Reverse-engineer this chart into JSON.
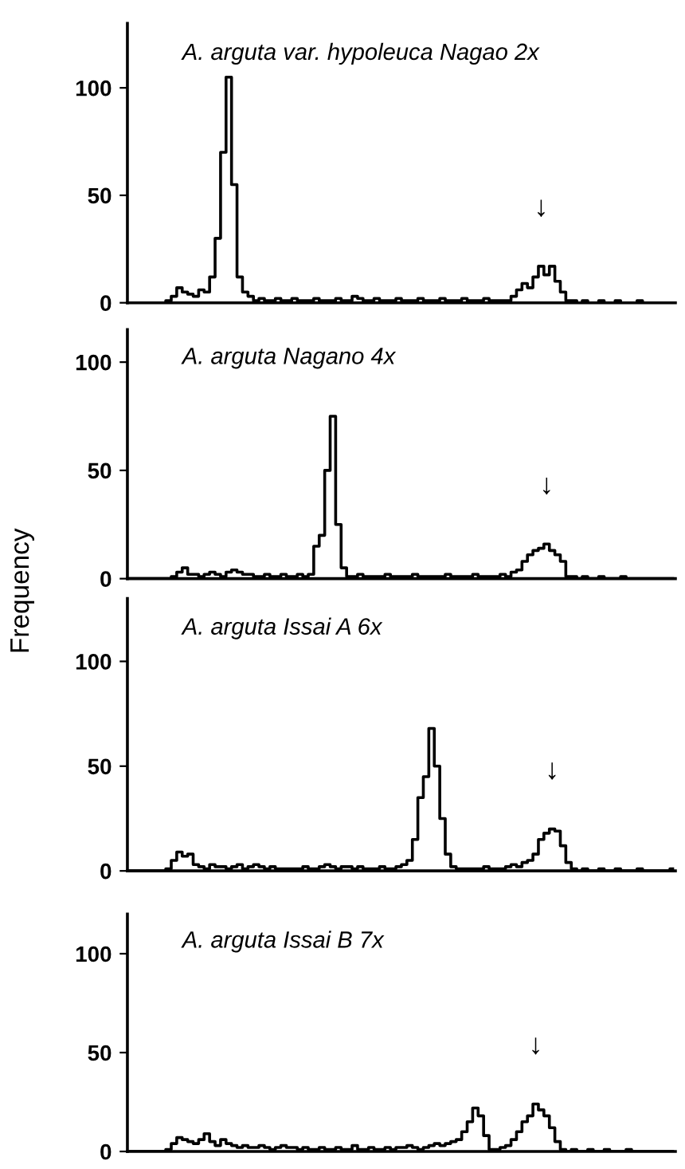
{
  "chart_data": [
    {
      "type": "step",
      "title": "A. arguta var. hypoleuca Nagao 2x",
      "ylim": [
        0,
        130
      ],
      "yticks": [
        0,
        50,
        100
      ],
      "grid": false,
      "annotations": [
        "↓"
      ],
      "categories": [
        null,
        null,
        null,
        null,
        null,
        null,
        null,
        null,
        null,
        null,
        null,
        null,
        null,
        null,
        null,
        null,
        null,
        null,
        null,
        null,
        null,
        null,
        null,
        null,
        null,
        null,
        null,
        null,
        null,
        null,
        null,
        null,
        null,
        null,
        null,
        null,
        null,
        null,
        null,
        null,
        null,
        null,
        null,
        null,
        null,
        null,
        null,
        null,
        null,
        null,
        null,
        null,
        null,
        null,
        null,
        null,
        null,
        null,
        null,
        null,
        null,
        null,
        null,
        null,
        null,
        null,
        null,
        null,
        null,
        null,
        null,
        null,
        null,
        null,
        null,
        null,
        null,
        null,
        null,
        null,
        null,
        null,
        null,
        null,
        null,
        null,
        null,
        null,
        null,
        null,
        null,
        null,
        null,
        null,
        null,
        null,
        null,
        null,
        null,
        null
      ],
      "series": [
        {
          "color": "#000000",
          "values": [
            0,
            0,
            0,
            0,
            0,
            0,
            0,
            1,
            3,
            7,
            5,
            4,
            3,
            6,
            5,
            12,
            30,
            70,
            105,
            55,
            12,
            5,
            3,
            1,
            2,
            1,
            1,
            2,
            1,
            1,
            2,
            1,
            1,
            1,
            2,
            1,
            1,
            1,
            2,
            1,
            1,
            3,
            2,
            1,
            1,
            2,
            1,
            1,
            1,
            2,
            1,
            1,
            1,
            2,
            1,
            1,
            1,
            2,
            1,
            1,
            1,
            2,
            1,
            1,
            1,
            2,
            1,
            1,
            1,
            1,
            3,
            6,
            9,
            7,
            12,
            17,
            13,
            17,
            10,
            5,
            1,
            1,
            0,
            1,
            0,
            0,
            1,
            0,
            0,
            1,
            0,
            0,
            0,
            1,
            0,
            0,
            0,
            0,
            0,
            0
          ]
        }
      ]
    },
    {
      "type": "step",
      "title": "A. arguta Nagano 4x",
      "ylabel": "Frequency",
      "ylim": [
        0,
        115
      ],
      "yticks": [
        0,
        50,
        100
      ],
      "grid": false,
      "annotations": [
        "↓"
      ],
      "categories": [
        null,
        null,
        null,
        null,
        null,
        null,
        null,
        null,
        null,
        null,
        null,
        null,
        null,
        null,
        null,
        null,
        null,
        null,
        null,
        null,
        null,
        null,
        null,
        null,
        null,
        null,
        null,
        null,
        null,
        null,
        null,
        null,
        null,
        null,
        null,
        null,
        null,
        null,
        null,
        null,
        null,
        null,
        null,
        null,
        null,
        null,
        null,
        null,
        null,
        null,
        null,
        null,
        null,
        null,
        null,
        null,
        null,
        null,
        null,
        null,
        null,
        null,
        null,
        null,
        null,
        null,
        null,
        null,
        null,
        null,
        null,
        null,
        null,
        null,
        null,
        null,
        null,
        null,
        null,
        null,
        null,
        null,
        null,
        null,
        null,
        null,
        null,
        null,
        null,
        null,
        null,
        null,
        null,
        null,
        null,
        null,
        null,
        null,
        null,
        null
      ],
      "series": [
        {
          "color": "#000000",
          "values": [
            0,
            0,
            0,
            0,
            0,
            0,
            0,
            0,
            1,
            3,
            5,
            2,
            2,
            1,
            2,
            3,
            2,
            1,
            3,
            4,
            3,
            2,
            2,
            1,
            1,
            2,
            1,
            1,
            2,
            1,
            1,
            2,
            1,
            2,
            15,
            20,
            50,
            75,
            25,
            5,
            1,
            1,
            2,
            1,
            1,
            1,
            1,
            2,
            1,
            1,
            1,
            1,
            2,
            1,
            1,
            1,
            1,
            1,
            2,
            1,
            1,
            1,
            1,
            2,
            1,
            1,
            1,
            1,
            2,
            1,
            3,
            4,
            8,
            11,
            13,
            14,
            16,
            13,
            11,
            8,
            1,
            1,
            0,
            1,
            0,
            0,
            1,
            0,
            0,
            0,
            1,
            0,
            0,
            0,
            0,
            0,
            0,
            0,
            0,
            0
          ]
        }
      ]
    },
    {
      "type": "step",
      "title": "A. arguta Issai A 6x",
      "ylim": [
        0,
        130
      ],
      "yticks": [
        0,
        50,
        100
      ],
      "grid": false,
      "annotations": [
        "↓"
      ],
      "categories": [
        null,
        null,
        null,
        null,
        null,
        null,
        null,
        null,
        null,
        null,
        null,
        null,
        null,
        null,
        null,
        null,
        null,
        null,
        null,
        null,
        null,
        null,
        null,
        null,
        null,
        null,
        null,
        null,
        null,
        null,
        null,
        null,
        null,
        null,
        null,
        null,
        null,
        null,
        null,
        null,
        null,
        null,
        null,
        null,
        null,
        null,
        null,
        null,
        null,
        null,
        null,
        null,
        null,
        null,
        null,
        null,
        null,
        null,
        null,
        null,
        null,
        null,
        null,
        null,
        null,
        null,
        null,
        null,
        null,
        null,
        null,
        null,
        null,
        null,
        null,
        null,
        null,
        null,
        null,
        null,
        null,
        null,
        null,
        null,
        null,
        null,
        null,
        null,
        null,
        null,
        null,
        null,
        null,
        null,
        null,
        null,
        null,
        null,
        null,
        null
      ],
      "series": [
        {
          "color": "#000000",
          "values": [
            0,
            0,
            0,
            0,
            0,
            0,
            0,
            1,
            5,
            9,
            7,
            8,
            3,
            2,
            1,
            3,
            2,
            2,
            1,
            2,
            3,
            1,
            2,
            3,
            2,
            1,
            2,
            1,
            1,
            1,
            1,
            1,
            2,
            1,
            1,
            2,
            3,
            2,
            1,
            2,
            2,
            1,
            2,
            1,
            1,
            1,
            2,
            1,
            1,
            2,
            3,
            5,
            15,
            35,
            45,
            68,
            50,
            25,
            8,
            2,
            1,
            1,
            1,
            1,
            1,
            2,
            1,
            1,
            1,
            2,
            3,
            2,
            4,
            5,
            8,
            15,
            18,
            20,
            19,
            12,
            4,
            1,
            0,
            1,
            0,
            0,
            1,
            0,
            0,
            1,
            0,
            0,
            0,
            1,
            0,
            0,
            0,
            0,
            0,
            1
          ]
        }
      ]
    },
    {
      "type": "step",
      "title": "A. arguta Issai B 7x",
      "ylim": [
        0,
        120
      ],
      "yticks": [
        0,
        50,
        100
      ],
      "grid": false,
      "annotations": [
        "↓"
      ],
      "categories": [
        null,
        null,
        null,
        null,
        null,
        null,
        null,
        null,
        null,
        null,
        null,
        null,
        null,
        null,
        null,
        null,
        null,
        null,
        null,
        null,
        null,
        null,
        null,
        null,
        null,
        null,
        null,
        null,
        null,
        null,
        null,
        null,
        null,
        null,
        null,
        null,
        null,
        null,
        null,
        null,
        null,
        null,
        null,
        null,
        null,
        null,
        null,
        null,
        null,
        null,
        null,
        null,
        null,
        null,
        null,
        null,
        null,
        null,
        null,
        null,
        null,
        null,
        null,
        null,
        null,
        null,
        null,
        null,
        null,
        null,
        null,
        null,
        null,
        null,
        null,
        null,
        null,
        null,
        null,
        null,
        null,
        null,
        null,
        null,
        null,
        null,
        null,
        null,
        null,
        null,
        null,
        null,
        null,
        null,
        null,
        null,
        null,
        null,
        null,
        null
      ],
      "series": [
        {
          "color": "#000000",
          "values": [
            0,
            0,
            0,
            0,
            0,
            0,
            0,
            1,
            4,
            7,
            6,
            5,
            4,
            6,
            9,
            5,
            3,
            6,
            4,
            3,
            2,
            3,
            2,
            2,
            3,
            2,
            1,
            2,
            3,
            2,
            2,
            1,
            2,
            1,
            1,
            2,
            1,
            1,
            2,
            1,
            1,
            3,
            1,
            1,
            2,
            1,
            1,
            2,
            1,
            2,
            2,
            3,
            2,
            1,
            2,
            3,
            4,
            3,
            4,
            5,
            6,
            10,
            15,
            22,
            18,
            8,
            1,
            1,
            2,
            3,
            6,
            10,
            15,
            18,
            24,
            21,
            18,
            12,
            5,
            1,
            0,
            1,
            0,
            0,
            1,
            0,
            0,
            1,
            0,
            0,
            0,
            1,
            0,
            0,
            0,
            0,
            0,
            0,
            0,
            0
          ]
        }
      ]
    }
  ]
}
